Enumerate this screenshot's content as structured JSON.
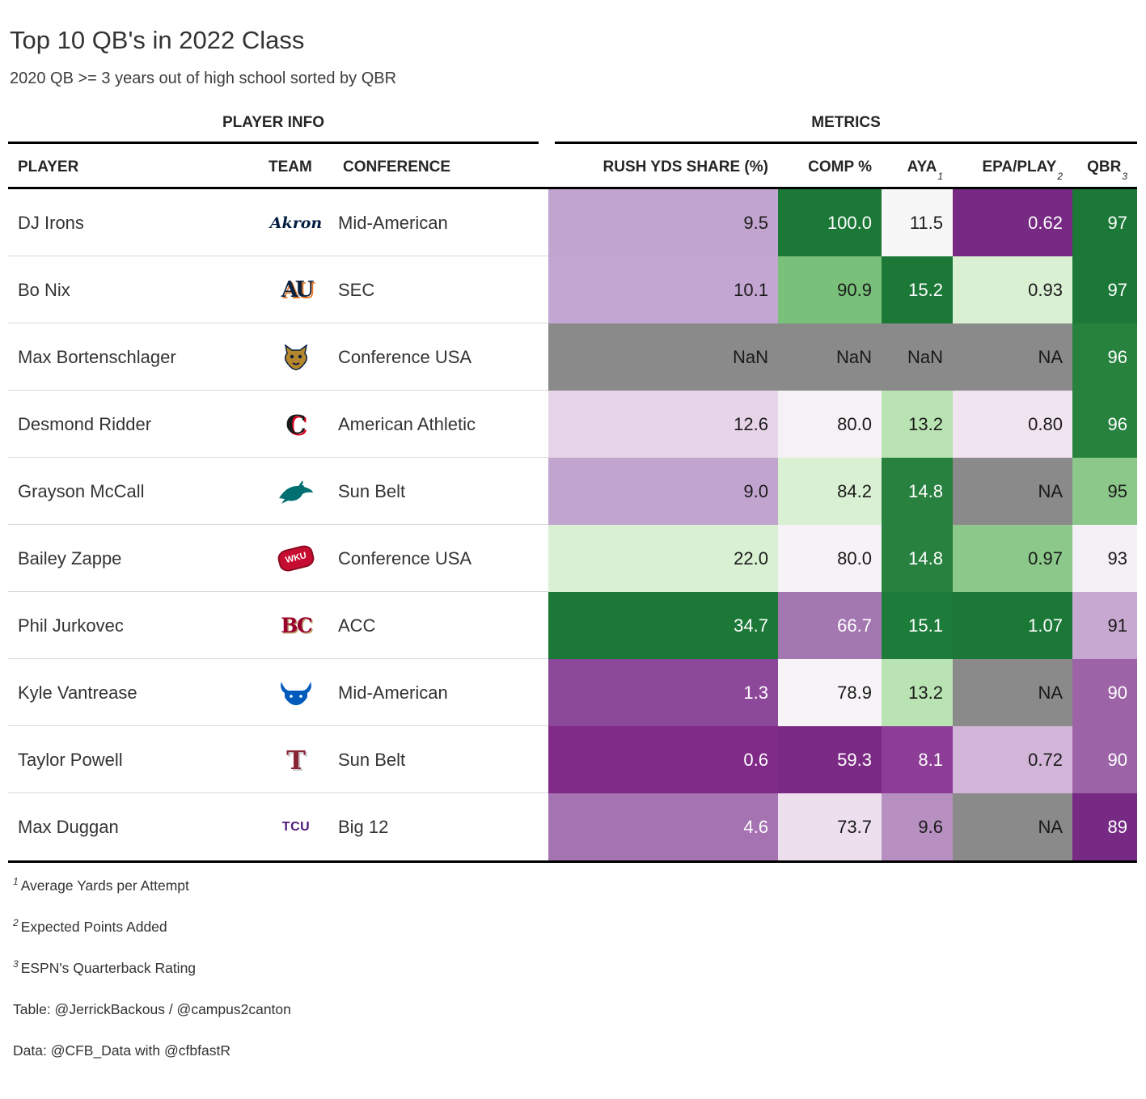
{
  "title": "Top 10 QB's in 2022 Class",
  "subtitle": "2020 QB >= 3 years out of high school sorted by QBR",
  "spanners": {
    "player_info": "PLAYER INFO",
    "metrics": "METRICS"
  },
  "columns": {
    "player": "PLAYER",
    "team": "TEAM",
    "conference": "CONFERENCE",
    "rush": "RUSH YDS SHARE (%)",
    "comp": "COMP %",
    "aya": "AYA",
    "aya_mark": "1",
    "epa": "EPA/PLAY",
    "epa_mark": "2",
    "qbr": "QBR",
    "qbr_mark": "3"
  },
  "rows": [
    {
      "player": "DJ Irons",
      "team": "Akron",
      "logo": "akron",
      "conference": "Mid-American",
      "cells": [
        {
          "v": "9.5",
          "bg": "#c2a5cf",
          "fg": "#1a1a1a"
        },
        {
          "v": "100.0",
          "bg": "#1b7837",
          "fg": "#ffffff"
        },
        {
          "v": "11.5",
          "bg": "#f7f7f7",
          "fg": "#1a1a1a"
        },
        {
          "v": "0.62",
          "bg": "#762a83",
          "fg": "#ffffff"
        },
        {
          "v": "97",
          "bg": "#1b7837",
          "fg": "#ffffff"
        }
      ]
    },
    {
      "player": "Bo Nix",
      "team": "Auburn",
      "logo": "auburn",
      "conference": "SEC",
      "cells": [
        {
          "v": "10.1",
          "bg": "#c3a6d1",
          "fg": "#1a1a1a"
        },
        {
          "v": "90.9",
          "bg": "#79c17a",
          "fg": "#1a1a1a"
        },
        {
          "v": "15.2",
          "bg": "#1b7837",
          "fg": "#ffffff"
        },
        {
          "v": "0.93",
          "bg": "#d9f0d3",
          "fg": "#1a1a1a"
        },
        {
          "v": "97",
          "bg": "#1b7837",
          "fg": "#ffffff"
        }
      ]
    },
    {
      "player": "Max Bortenschlager",
      "team": "FIU",
      "logo": "fiu",
      "conference": "Conference USA",
      "cells": [
        {
          "v": "NaN",
          "bg": "#8a8a8a",
          "fg": "#1a1a1a"
        },
        {
          "v": "NaN",
          "bg": "#8a8a8a",
          "fg": "#1a1a1a"
        },
        {
          "v": "NaN",
          "bg": "#8a8a8a",
          "fg": "#1a1a1a"
        },
        {
          "v": "NA",
          "bg": "#8a8a8a",
          "fg": "#1a1a1a"
        },
        {
          "v": "96",
          "bg": "#27823e",
          "fg": "#ffffff"
        }
      ]
    },
    {
      "player": "Desmond Ridder",
      "team": "Cincinnati",
      "logo": "cincinnati",
      "conference": "American Athletic",
      "cells": [
        {
          "v": "12.6",
          "bg": "#e7d4e8",
          "fg": "#1a1a1a"
        },
        {
          "v": "80.0",
          "bg": "#f5f1f5",
          "fg": "#1a1a1a"
        },
        {
          "v": "13.2",
          "bg": "#b9e3b2",
          "fg": "#1a1a1a"
        },
        {
          "v": "0.80",
          "bg": "#f0e4f1",
          "fg": "#1a1a1a"
        },
        {
          "v": "96",
          "bg": "#27823e",
          "fg": "#ffffff"
        }
      ]
    },
    {
      "player": "Grayson McCall",
      "team": "Coastal Carolina",
      "logo": "coastal",
      "conference": "Sun Belt",
      "cells": [
        {
          "v": "9.0",
          "bg": "#c2a5cf",
          "fg": "#1a1a1a"
        },
        {
          "v": "84.2",
          "bg": "#d9f0d3",
          "fg": "#1a1a1a"
        },
        {
          "v": "14.8",
          "bg": "#28813f",
          "fg": "#ffffff"
        },
        {
          "v": "NA",
          "bg": "#8a8a8a",
          "fg": "#1a1a1a"
        },
        {
          "v": "95",
          "bg": "#8bc88a",
          "fg": "#1a1a1a"
        }
      ]
    },
    {
      "player": "Bailey Zappe",
      "team": "Western Kentucky",
      "logo": "wku",
      "conference": "Conference USA",
      "cells": [
        {
          "v": "22.0",
          "bg": "#d9f0d3",
          "fg": "#1a1a1a"
        },
        {
          "v": "80.0",
          "bg": "#f6f2f6",
          "fg": "#1a1a1a"
        },
        {
          "v": "14.8",
          "bg": "#28813f",
          "fg": "#ffffff"
        },
        {
          "v": "0.97",
          "bg": "#8bc88a",
          "fg": "#1a1a1a"
        },
        {
          "v": "93",
          "bg": "#f4f0f5",
          "fg": "#1a1a1a"
        }
      ]
    },
    {
      "player": "Phil Jurkovec",
      "team": "Boston College",
      "logo": "bc",
      "conference": "ACC",
      "cells": [
        {
          "v": "34.7",
          "bg": "#1b7837",
          "fg": "#ffffff"
        },
        {
          "v": "66.7",
          "bg": "#a377b0",
          "fg": "#ffffff"
        },
        {
          "v": "15.1",
          "bg": "#1e7c3a",
          "fg": "#ffffff"
        },
        {
          "v": "1.07",
          "bg": "#1b7837",
          "fg": "#ffffff"
        },
        {
          "v": "91",
          "bg": "#c6a8d0",
          "fg": "#1a1a1a"
        }
      ]
    },
    {
      "player": "Kyle Vantrease",
      "team": "Buffalo",
      "logo": "buffalo",
      "conference": "Mid-American",
      "cells": [
        {
          "v": "1.3",
          "bg": "#8c4899",
          "fg": "#ffffff"
        },
        {
          "v": "78.9",
          "bg": "#f7f4f7",
          "fg": "#1a1a1a"
        },
        {
          "v": "13.2",
          "bg": "#b9e3b2",
          "fg": "#1a1a1a"
        },
        {
          "v": "NA",
          "bg": "#8a8a8a",
          "fg": "#1a1a1a"
        },
        {
          "v": "90",
          "bg": "#9c64a6",
          "fg": "#ffffff"
        }
      ]
    },
    {
      "player": "Taylor Powell",
      "team": "Troy",
      "logo": "troy",
      "conference": "Sun Belt",
      "cells": [
        {
          "v": "0.6",
          "bg": "#802a88",
          "fg": "#ffffff"
        },
        {
          "v": "59.3",
          "bg": "#7b2a84",
          "fg": "#ffffff"
        },
        {
          "v": "8.1",
          "bg": "#8d3d96",
          "fg": "#ffffff"
        },
        {
          "v": "0.72",
          "bg": "#d2b5d8",
          "fg": "#1a1a1a"
        },
        {
          "v": "90",
          "bg": "#9c64a6",
          "fg": "#ffffff"
        }
      ]
    },
    {
      "player": "Max Duggan",
      "team": "TCU",
      "logo": "tcu",
      "conference": "Big 12",
      "cells": [
        {
          "v": "4.6",
          "bg": "#a673b2",
          "fg": "#ffffff"
        },
        {
          "v": "73.7",
          "bg": "#eedfef",
          "fg": "#1a1a1a"
        },
        {
          "v": "9.6",
          "bg": "#b78fc0",
          "fg": "#1a1a1a"
        },
        {
          "v": "NA",
          "bg": "#8a8a8a",
          "fg": "#1a1a1a"
        },
        {
          "v": "89",
          "bg": "#762a83",
          "fg": "#ffffff"
        }
      ]
    }
  ],
  "footnotes": [
    {
      "mark": "1",
      "text": "Average Yards per Attempt"
    },
    {
      "mark": "2",
      "text": "Expected Points Added"
    },
    {
      "mark": "3",
      "text": "ESPN's Quarterback Rating"
    }
  ],
  "credits": [
    {
      "text": "Table: @JerrickBackous / @campus2canton"
    },
    {
      "text": "Data: @CFB_Data with @cfbfastR"
    }
  ],
  "chart_data": {
    "type": "table",
    "title": "Top 10 QB's in 2022 Class",
    "subtitle": "2020 QB >= 3 years out of high school sorted by QBR",
    "columns": [
      "Player",
      "Team",
      "Conference",
      "Rush Yds Share (%)",
      "Comp %",
      "AYA",
      "EPA/Play",
      "QBR"
    ],
    "rows": [
      [
        "DJ Irons",
        "Akron",
        "Mid-American",
        9.5,
        100.0,
        11.5,
        0.62,
        97
      ],
      [
        "Bo Nix",
        "Auburn",
        "SEC",
        10.1,
        90.9,
        15.2,
        0.93,
        97
      ],
      [
        "Max Bortenschlager",
        "FIU",
        "Conference USA",
        "NaN",
        "NaN",
        "NaN",
        "NA",
        96
      ],
      [
        "Desmond Ridder",
        "Cincinnati",
        "American Athletic",
        12.6,
        80.0,
        13.2,
        0.8,
        96
      ],
      [
        "Grayson McCall",
        "Coastal Carolina",
        "Sun Belt",
        9.0,
        84.2,
        14.8,
        "NA",
        95
      ],
      [
        "Bailey Zappe",
        "Western Kentucky",
        "Conference USA",
        22.0,
        80.0,
        14.8,
        0.97,
        93
      ],
      [
        "Phil Jurkovec",
        "Boston College",
        "ACC",
        34.7,
        66.7,
        15.1,
        1.07,
        91
      ],
      [
        "Kyle Vantrease",
        "Buffalo",
        "Mid-American",
        1.3,
        78.9,
        13.2,
        "NA",
        90
      ],
      [
        "Taylor Powell",
        "Troy",
        "Sun Belt",
        0.6,
        59.3,
        8.1,
        0.72,
        90
      ],
      [
        "Max Duggan",
        "TCU",
        "Big 12",
        4.6,
        73.7,
        9.6,
        "NA",
        89
      ]
    ],
    "heatmap_palette": [
      "#762a83",
      "#9970ab",
      "#c2a5cf",
      "#e7d4e8",
      "#f7f7f7",
      "#d9f0d3",
      "#a6dba0",
      "#5aae61",
      "#1b7837"
    ],
    "na_cell_color": "#8a8a8a",
    "legend_position": "none",
    "grid": false
  }
}
